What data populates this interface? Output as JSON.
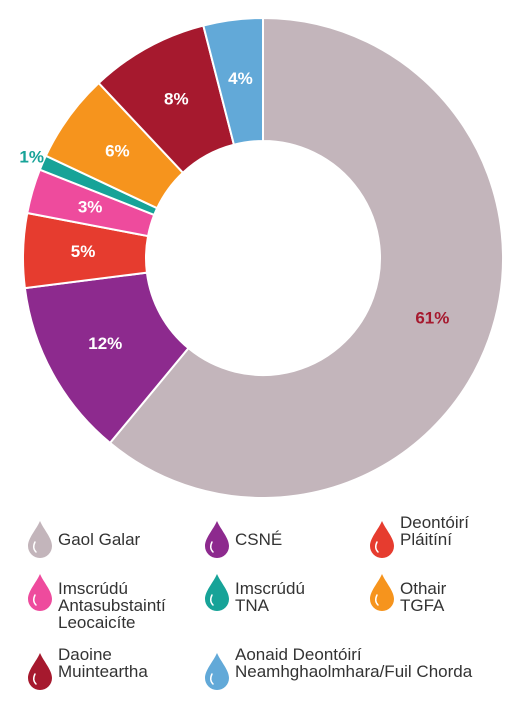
{
  "chart_data": {
    "type": "pie",
    "categories": [
      "Gaol Galar",
      "CSNÉ",
      "Deontóirí\nPláitíní",
      "Imscrúdú\nAntasubstaintí\nLeocaicíte",
      "Imscrúdú\nTNA",
      "Othair\nTGFA",
      "Daoine\nMuinteartha",
      "Aonaid Deontóirí\nNeamhghaolmhara/Fuil Chorda"
    ],
    "values": [
      61,
      12,
      5,
      3,
      1,
      6,
      8,
      4
    ],
    "value_labels": [
      "61%",
      "12%",
      "5%",
      "3%",
      "1%",
      "6%",
      "8%",
      "4%"
    ],
    "colors": [
      "#c3b5bb",
      "#8d2a8e",
      "#e63c2f",
      "#ee4b9d",
      "#17a398",
      "#f6941d",
      "#a6192e",
      "#62a9d8"
    ]
  }
}
